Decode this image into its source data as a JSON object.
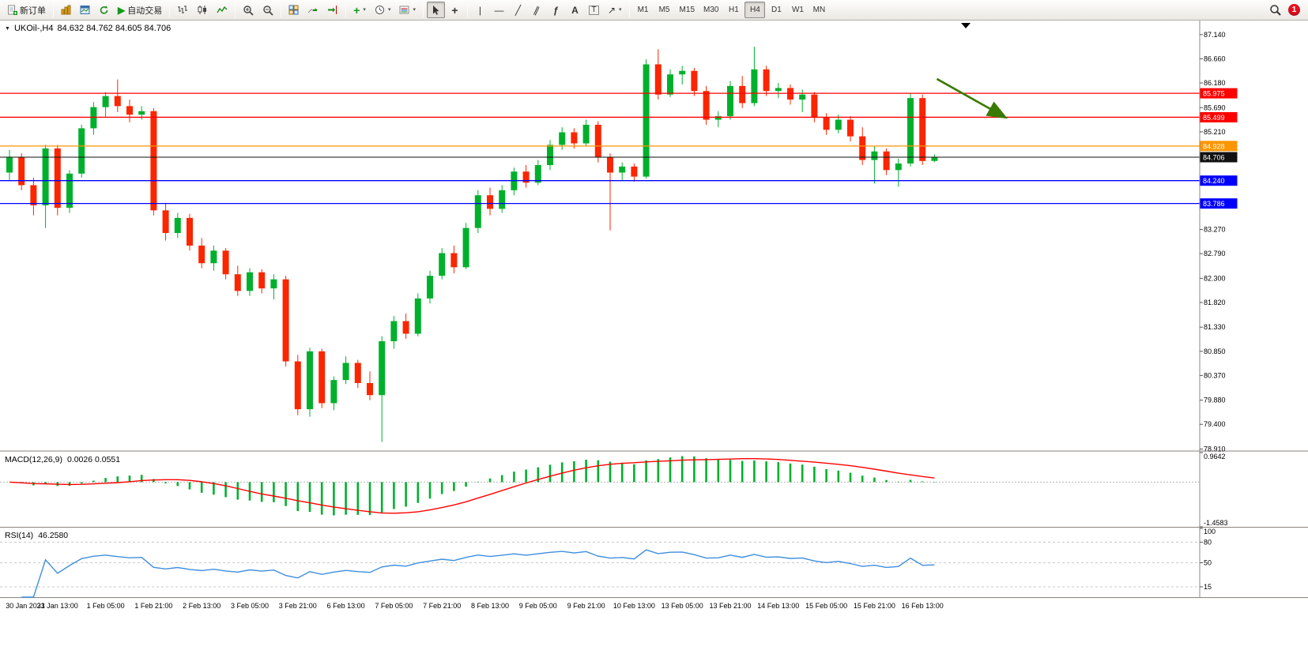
{
  "toolbar": {
    "new_order": "新订单",
    "autotrading": "自动交易",
    "text_tool": "A",
    "label_tool": "T",
    "timeframes": [
      "M1",
      "M5",
      "M15",
      "M30",
      "H1",
      "H4",
      "D1",
      "W1",
      "MN"
    ],
    "active_timeframe": "H4",
    "notification_count": "1"
  },
  "icons": {
    "dropdown": "▼",
    "play": "▶",
    "indicators_plus": "+",
    "crosshair": "+",
    "vline": "|",
    "hline": "—",
    "trendline": "╱",
    "channel": "∥",
    "fibonacci": "ƒ",
    "arrow_tool": "↗",
    "caret": "▾",
    "shift_marker": "▼"
  },
  "chart": {
    "symbol_period": "UKOil-,H4",
    "ohlc_text": "84.632 84.762 84.605 84.706"
  },
  "colors": {
    "bull": "#00b02c",
    "bear": "#fb2500",
    "macd_hist": "#00b02c",
    "macd_signal": "#ff0000",
    "rsi": "#3e8ede",
    "axis_text": "#000000",
    "grid": "#b5b5b5"
  },
  "chart_data": {
    "type": "candlestick",
    "symbol": "UKOil-",
    "timeframe": "H4",
    "title": "UKOil-,H4 84.632 84.762 84.605 84.706",
    "ylim": [
      78.87,
      87.42
    ],
    "y_ticks": [
      "87.140",
      "86.660",
      "86.180",
      "85.690",
      "85.210",
      "83.270",
      "82.790",
      "82.300",
      "81.820",
      "81.330",
      "80.850",
      "80.370",
      "79.880",
      "79.400",
      "78.910"
    ],
    "x_labels": [
      "30 Jan 2023",
      "31 Jan 13:00",
      "1 Feb 05:00",
      "1 Feb 21:00",
      "2 Feb 13:00",
      "3 Feb 05:00",
      "3 Feb 21:00",
      "6 Feb 13:00",
      "7 Feb 05:00",
      "7 Feb 21:00",
      "8 Feb 13:00",
      "9 Feb 05:00",
      "9 Feb 21:00",
      "10 Feb 13:00",
      "13 Feb 05:00",
      "13 Feb 21:00",
      "14 Feb 13:00",
      "15 Feb 05:00",
      "15 Feb 21:00",
      "16 Feb 13:00"
    ],
    "candles": [
      [
        84.4,
        84.85,
        84.25,
        84.7
      ],
      [
        84.7,
        84.78,
        84.05,
        84.15
      ],
      [
        84.15,
        84.3,
        83.55,
        83.75
      ],
      [
        83.75,
        84.95,
        83.3,
        84.88
      ],
      [
        84.88,
        84.95,
        83.55,
        83.7
      ],
      [
        83.7,
        84.45,
        83.6,
        84.38
      ],
      [
        84.38,
        85.35,
        84.3,
        85.28
      ],
      [
        85.28,
        85.8,
        85.15,
        85.7
      ],
      [
        85.7,
        86.0,
        85.5,
        85.92
      ],
      [
        85.92,
        86.25,
        85.6,
        85.72
      ],
      [
        85.72,
        85.85,
        85.4,
        85.55
      ],
      [
        85.55,
        85.72,
        85.45,
        85.62
      ],
      [
        85.62,
        85.68,
        83.55,
        83.65
      ],
      [
        83.65,
        83.8,
        83.05,
        83.2
      ],
      [
        83.2,
        83.6,
        83.1,
        83.5
      ],
      [
        83.5,
        83.58,
        82.85,
        82.95
      ],
      [
        82.95,
        83.1,
        82.5,
        82.6
      ],
      [
        82.6,
        82.95,
        82.45,
        82.85
      ],
      [
        82.85,
        82.9,
        82.28,
        82.38
      ],
      [
        82.38,
        82.55,
        81.95,
        82.05
      ],
      [
        82.05,
        82.5,
        81.95,
        82.42
      ],
      [
        82.42,
        82.48,
        82.0,
        82.1
      ],
      [
        82.1,
        82.38,
        81.88,
        82.28
      ],
      [
        82.28,
        82.35,
        80.55,
        80.65
      ],
      [
        80.65,
        80.78,
        79.58,
        79.7
      ],
      [
        79.7,
        80.92,
        79.55,
        80.85
      ],
      [
        80.85,
        80.9,
        79.72,
        79.82
      ],
      [
        79.82,
        80.35,
        79.68,
        80.28
      ],
      [
        80.28,
        80.75,
        80.2,
        80.62
      ],
      [
        80.62,
        80.68,
        80.12,
        80.22
      ],
      [
        80.22,
        80.45,
        79.88,
        79.98
      ],
      [
        79.98,
        81.15,
        79.05,
        81.05
      ],
      [
        81.05,
        81.55,
        80.9,
        81.45
      ],
      [
        81.45,
        81.6,
        81.1,
        81.2
      ],
      [
        81.2,
        82.0,
        81.15,
        81.9
      ],
      [
        81.9,
        82.45,
        81.8,
        82.35
      ],
      [
        82.35,
        82.9,
        82.28,
        82.8
      ],
      [
        82.8,
        82.95,
        82.4,
        82.52
      ],
      [
        82.52,
        83.4,
        82.48,
        83.3
      ],
      [
        83.3,
        84.05,
        83.2,
        83.95
      ],
      [
        83.95,
        84.1,
        83.55,
        83.68
      ],
      [
        83.68,
        84.15,
        83.6,
        84.05
      ],
      [
        84.05,
        84.5,
        83.95,
        84.42
      ],
      [
        84.42,
        84.55,
        84.1,
        84.2
      ],
      [
        84.2,
        84.65,
        84.15,
        84.55
      ],
      [
        84.55,
        85.05,
        84.45,
        84.95
      ],
      [
        84.95,
        85.3,
        84.85,
        85.2
      ],
      [
        85.2,
        85.28,
        84.88,
        84.98
      ],
      [
        84.98,
        85.45,
        84.92,
        85.35
      ],
      [
        85.35,
        85.42,
        84.6,
        84.7
      ],
      [
        84.7,
        84.78,
        83.25,
        84.4
      ],
      [
        84.4,
        84.6,
        84.25,
        84.52
      ],
      [
        84.52,
        84.58,
        84.22,
        84.32
      ],
      [
        84.32,
        86.65,
        84.28,
        86.55
      ],
      [
        86.55,
        86.85,
        85.85,
        85.95
      ],
      [
        85.95,
        86.45,
        85.9,
        86.35
      ],
      [
        86.35,
        86.52,
        86.15,
        86.42
      ],
      [
        86.42,
        86.48,
        85.92,
        86.02
      ],
      [
        86.02,
        86.12,
        85.35,
        85.45
      ],
      [
        85.45,
        85.62,
        85.3,
        85.52
      ],
      [
        85.52,
        86.22,
        85.45,
        86.12
      ],
      [
        86.12,
        86.32,
        85.68,
        85.78
      ],
      [
        85.78,
        86.9,
        85.72,
        86.45
      ],
      [
        86.45,
        86.52,
        85.92,
        86.02
      ],
      [
        86.02,
        86.18,
        85.88,
        86.08
      ],
      [
        86.08,
        86.15,
        85.75,
        85.85
      ],
      [
        85.85,
        86.05,
        85.6,
        85.95
      ],
      [
        85.95,
        86.0,
        85.4,
        85.5
      ],
      [
        85.5,
        85.58,
        85.15,
        85.25
      ],
      [
        85.25,
        85.55,
        85.18,
        85.45
      ],
      [
        85.45,
        85.52,
        85.02,
        85.12
      ],
      [
        85.12,
        85.3,
        84.55,
        84.65
      ],
      [
        84.65,
        84.92,
        84.18,
        84.82
      ],
      [
        84.82,
        84.88,
        84.35,
        84.45
      ],
      [
        84.45,
        84.68,
        84.12,
        84.58
      ],
      [
        84.58,
        85.98,
        84.52,
        85.88
      ],
      [
        85.88,
        85.95,
        84.55,
        84.63
      ],
      [
        84.632,
        84.762,
        84.605,
        84.706
      ]
    ],
    "hlines": [
      {
        "price": 85.975,
        "label": "85.975",
        "color": "#ff0000"
      },
      {
        "price": 85.499,
        "label": "85.499",
        "color": "#ff0000"
      },
      {
        "price": 84.928,
        "label": "84.928",
        "color": "#ff9500"
      },
      {
        "price": 84.24,
        "label": "84.240",
        "color": "#0000ff"
      },
      {
        "price": 83.786,
        "label": "83.786",
        "color": "#0000ff"
      }
    ],
    "bid_line": {
      "price": 84.706,
      "label": "84.706",
      "color": "#111111"
    },
    "arrow": {
      "from_index": 77.2,
      "from_price": 86.26,
      "to_index": 82.8,
      "to_price": 85.51,
      "color": "#3a7a00"
    },
    "indicators": {
      "macd": {
        "title": "MACD(12,26,9)",
        "values": "0.0026 0.0551",
        "fast": 12,
        "slow": 26,
        "signal": 9,
        "ylim": [
          -1.4583,
          0.9642
        ],
        "y_ticks": [
          "0.9642",
          "-1.4583"
        ]
      },
      "rsi": {
        "title": "RSI(14)",
        "values": "46.2580",
        "period": 14,
        "ylim": [
          0,
          100
        ],
        "y_ticks": [
          100,
          80,
          50,
          15
        ],
        "levels": [
          80,
          50,
          15
        ]
      }
    }
  }
}
